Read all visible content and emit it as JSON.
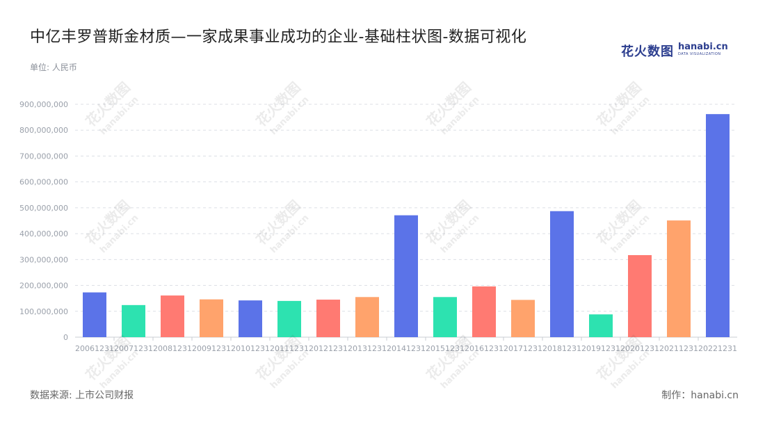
{
  "header": {
    "title": "中亿丰罗普斯金材质—一家成果事业成功的企业-基础柱状图-数据可视化",
    "unit": "单位: 人民币"
  },
  "logo": {
    "cn": "花火数图",
    "en": "hanabi.cn",
    "sub": "DATA VISUALIZATION",
    "color": "#2c3e8f"
  },
  "footer": {
    "source": "数据来源: 上市公司财报",
    "maker": "制作：hanabi.cn"
  },
  "chart_data": {
    "type": "bar",
    "categories": [
      "20061231",
      "20071231",
      "20081231",
      "20091231",
      "20101231",
      "20111231",
      "20121231",
      "20131231",
      "20141231",
      "20151231",
      "20161231",
      "20171231",
      "20181231",
      "20191231",
      "20201231",
      "20211231",
      "20221231"
    ],
    "values": [
      173000000,
      124000000,
      161000000,
      146000000,
      142000000,
      140000000,
      145000000,
      155000000,
      471000000,
      155000000,
      196000000,
      144000000,
      487000000,
      88000000,
      317000000,
      451000000,
      862000000
    ],
    "bar_colors": [
      "#5b73e8",
      "#2de2b0",
      "#ff7a72",
      "#ffa36c",
      "#5b73e8",
      "#2de2b0",
      "#ff7a72",
      "#ffa36c",
      "#5b73e8",
      "#2de2b0",
      "#ff7a72",
      "#ffa36c",
      "#5b73e8",
      "#2de2b0",
      "#ff7a72",
      "#ffa36c",
      "#5b73e8"
    ],
    "ylim": [
      0,
      900000000
    ],
    "yticks": [
      0,
      100000000,
      200000000,
      300000000,
      400000000,
      500000000,
      600000000,
      700000000,
      800000000,
      900000000
    ],
    "ytick_labels": [
      "0",
      "100,000,000",
      "200,000,000",
      "300,000,000",
      "400,000,000",
      "500,000,000",
      "600,000,000",
      "700,000,000",
      "800,000,000",
      "900,000,000"
    ],
    "grid": true,
    "xlabel": "",
    "ylabel": ""
  }
}
